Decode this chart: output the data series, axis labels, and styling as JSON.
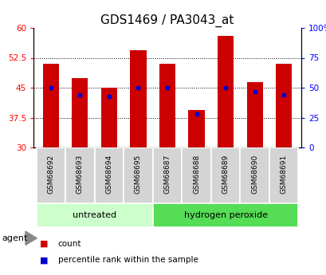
{
  "title": "GDS1469 / PA3043_at",
  "samples": [
    "GSM68692",
    "GSM68693",
    "GSM68694",
    "GSM68695",
    "GSM68687",
    "GSM68688",
    "GSM68689",
    "GSM68690",
    "GSM68691"
  ],
  "counts": [
    51.0,
    47.5,
    45.0,
    54.5,
    51.0,
    39.5,
    58.0,
    46.5,
    51.0
  ],
  "percentile_ranks": [
    50,
    44,
    43,
    50,
    50,
    28,
    50,
    47,
    44
  ],
  "ylim_left": [
    30,
    60
  ],
  "ylim_right": [
    0,
    100
  ],
  "yticks_left": [
    30,
    37.5,
    45,
    52.5,
    60
  ],
  "yticks_right": [
    0,
    25,
    50,
    75,
    100
  ],
  "bar_bottom": 30,
  "bar_color": "#cc0000",
  "dot_color": "#0000cc",
  "groups": [
    {
      "label": "untreated",
      "indices": [
        0,
        1,
        2,
        3
      ],
      "color": "#ccffcc"
    },
    {
      "label": "hydrogen peroxide",
      "indices": [
        4,
        5,
        6,
        7,
        8
      ],
      "color": "#55dd55"
    }
  ],
  "agent_label": "agent",
  "legend_items": [
    {
      "label": "count",
      "color": "#cc0000"
    },
    {
      "label": "percentile rank within the sample",
      "color": "#0000cc"
    }
  ],
  "title_fontsize": 11,
  "tick_fontsize": 7.5,
  "sample_fontsize": 6.5,
  "group_fontsize": 8,
  "legend_fontsize": 7.5
}
